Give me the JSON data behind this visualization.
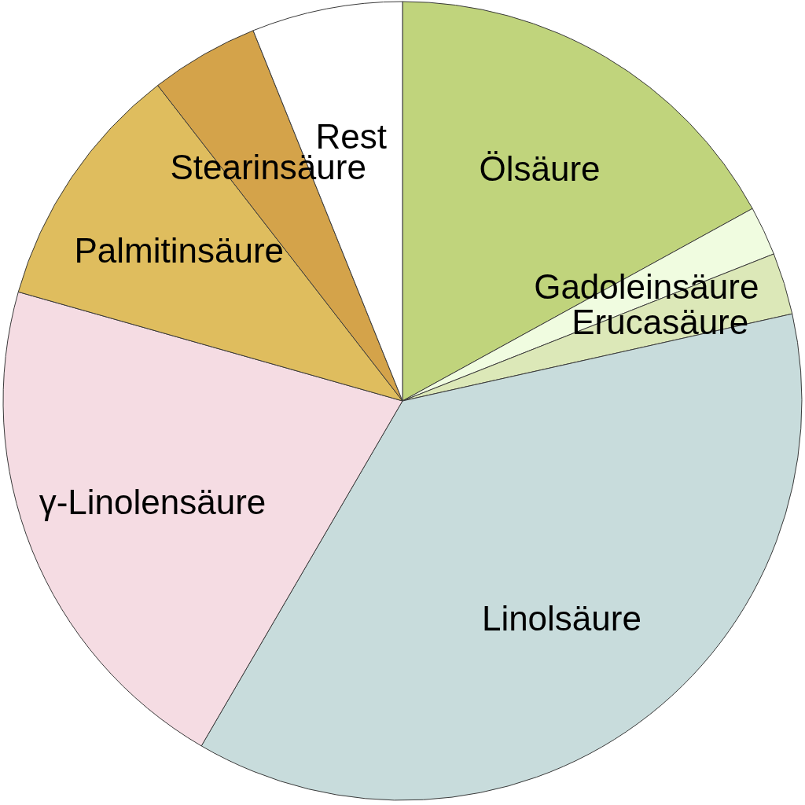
{
  "chart_data": {
    "type": "pie",
    "categories": [
      "Ölsäure",
      "Gadoleinsäure",
      "Erucasäure",
      "Linolsäure",
      "γ-Linolensäure",
      "Palmitinsäure",
      "Stearinsäure",
      "Rest"
    ],
    "values": [
      17,
      2,
      2.5,
      36.9,
      21,
      10.1,
      4.4,
      6.1
    ],
    "colors": [
      "#c0d47c",
      "#f0fce0",
      "#dce8b8",
      "#c8dcdc",
      "#f5dce3",
      "#dfbd5e",
      "#d4a34a",
      "#ffffff"
    ]
  }
}
